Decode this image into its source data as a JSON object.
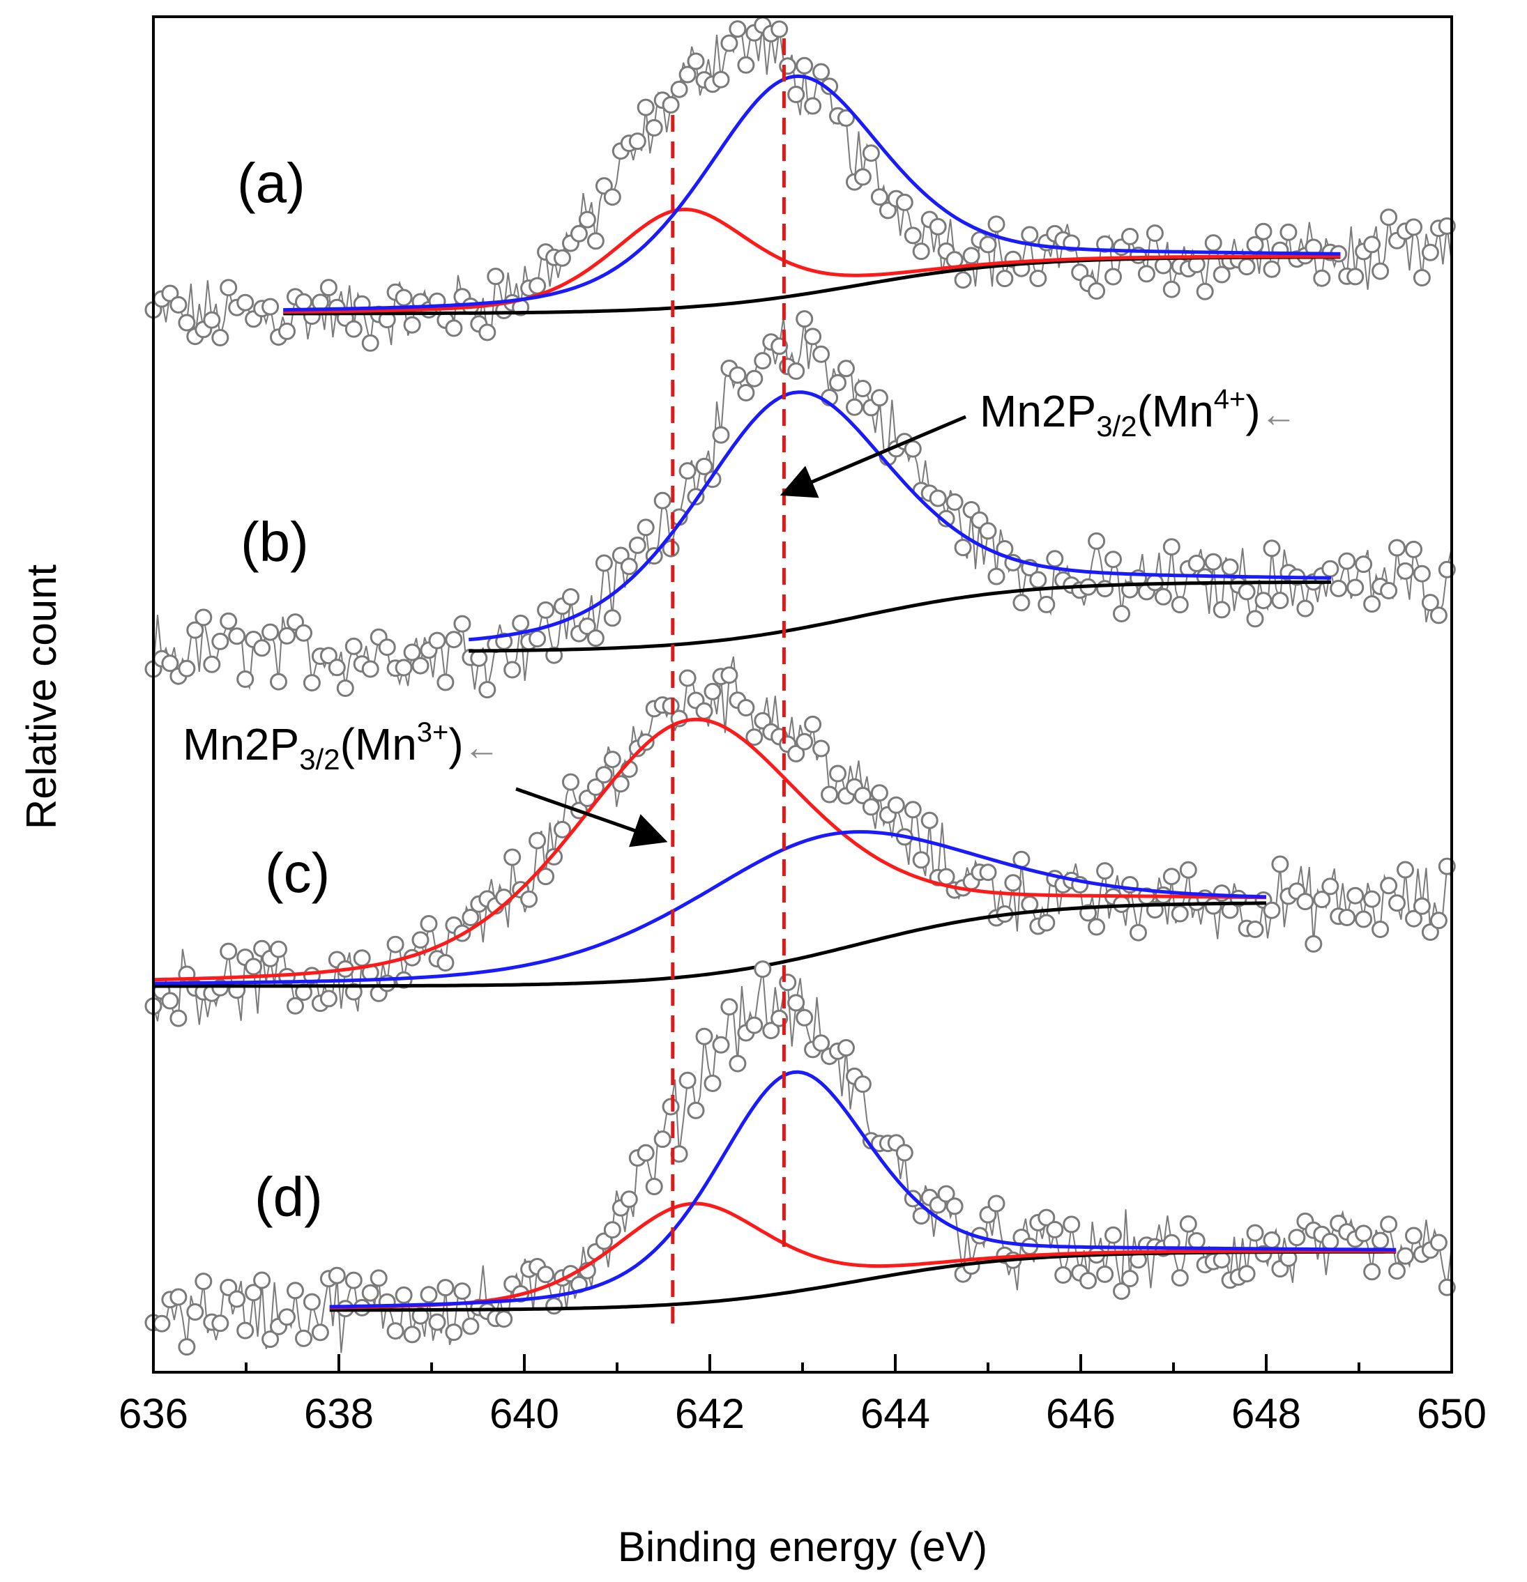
{
  "chart_data": {
    "type": "line",
    "xlabel": "Binding energy (eV)",
    "ylabel": "Relative count",
    "xlim": [
      636,
      650
    ],
    "x_ticks": [
      "636",
      "638",
      "640",
      "642",
      "644",
      "646",
      "648",
      "650"
    ],
    "y_ticks": "none",
    "grid": false,
    "colors": {
      "data": "#7a7a7a",
      "mn3": "#ff1a1a",
      "mn4": "#1a1aff",
      "background_fit": "#000000",
      "reference_lines": "#dd1a1a"
    },
    "reference_lines_x": [
      641.6,
      642.8
    ],
    "panels": [
      {
        "label": "(a)",
        "baseline": 0,
        "data_peak": {
          "center": 642.3,
          "height": 1.0,
          "fwhm": 2.6
        },
        "components": [
          {
            "color": "red",
            "center": 641.7,
            "height": 0.38,
            "fwhm": 1.8,
            "x_range": [
              637.4,
              648.8
            ]
          },
          {
            "color": "blue",
            "center": 642.9,
            "height": 0.85,
            "fwhm": 2.3,
            "x_range": [
              637.4,
              648.8
            ]
          },
          {
            "color": "black",
            "type": "shirley-background",
            "step": 0.22,
            "x_range": [
              637.4,
              648.8
            ]
          }
        ]
      },
      {
        "label": "(b)",
        "baseline": 0,
        "data_peak": {
          "center": 642.9,
          "height": 1.0,
          "fwhm": 2.6
        },
        "components": [
          {
            "color": "blue",
            "center": 642.9,
            "height": 0.85,
            "fwhm": 2.5,
            "x_range": [
              639.4,
              648.7
            ]
          },
          {
            "color": "black",
            "type": "shirley-background",
            "step": 0.25,
            "x_range": [
              639.4,
              648.7
            ]
          }
        ]
      },
      {
        "label": "(c)",
        "baseline": 0,
        "data_peak": {
          "center": 642.0,
          "height": 1.0,
          "fwhm": 3.4
        },
        "components": [
          {
            "color": "red",
            "center": 641.8,
            "height": 0.92,
            "fwhm": 3.0,
            "x_range": [
              636.0,
              648.0
            ]
          },
          {
            "color": "blue",
            "center": 643.2,
            "height": 0.42,
            "fwhm": 3.6,
            "x_range": [
              636.0,
              648.0
            ]
          },
          {
            "color": "black",
            "type": "shirley-background",
            "step": 0.3,
            "x_range": [
              636.0,
              648.0
            ]
          }
        ]
      },
      {
        "label": "(d)",
        "baseline": 0,
        "data_peak": {
          "center": 642.6,
          "height": 1.0,
          "fwhm": 2.4
        },
        "components": [
          {
            "color": "red",
            "center": 641.8,
            "height": 0.34,
            "fwhm": 2.0,
            "x_range": [
              637.9,
              649.4
            ]
          },
          {
            "color": "blue",
            "center": 642.9,
            "height": 0.75,
            "fwhm": 2.0,
            "x_range": [
              637.9,
              649.4
            ]
          },
          {
            "color": "black",
            "type": "shirley-background",
            "step": 0.2,
            "x_range": [
              637.9,
              649.4
            ]
          }
        ]
      }
    ],
    "annotations": [
      {
        "name": "mn4",
        "text_main": "Mn2P",
        "sub": "3/2",
        "text_mid": "(Mn",
        "sup": "4+",
        "text_end": ")",
        "trail": "←",
        "points_to_x": 642.8,
        "panel": "(b)"
      },
      {
        "name": "mn3",
        "text_main": "Mn2P",
        "sub": "3/2",
        "text_mid": "(Mn",
        "sup": "3+",
        "text_end": ")",
        "trail": "←",
        "points_to_x": 641.6,
        "panel": "(c)"
      }
    ]
  }
}
